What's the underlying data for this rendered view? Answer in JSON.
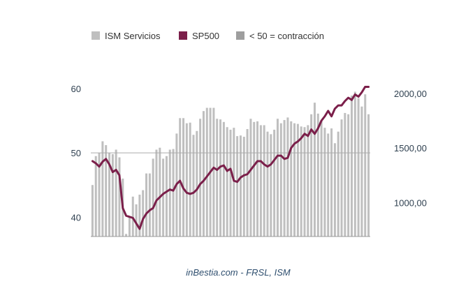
{
  "chart_data": {
    "type": "bar",
    "title": "",
    "xlabel": "",
    "ylabel": "",
    "source": "inBestia.com - FRSL, ISM",
    "legend": [
      {
        "label": "ISM Servicios",
        "color": "#bfbfbf",
        "kind": "bar"
      },
      {
        "label": "SP500",
        "color": "#7b1f4a",
        "kind": "line"
      },
      {
        "label": "< 50 = contracción",
        "color": "#9e9e9e",
        "kind": "bar"
      }
    ],
    "legend_position": "top",
    "grid": false,
    "reference_line": {
      "value": 50,
      "color": "#aaaaaa"
    },
    "y_left": {
      "min": 37,
      "max": 64,
      "ticks": [
        {
          "value": 40,
          "label": "40"
        },
        {
          "value": 50,
          "label": "50"
        },
        {
          "value": 60,
          "label": "60"
        }
      ]
    },
    "y_right": {
      "min": 690,
      "max": 2280,
      "ticks": [
        {
          "value": 1000,
          "label": "1000,00"
        },
        {
          "value": 1500,
          "label": "1500,00"
        },
        {
          "value": 2000,
          "label": "2000,00"
        }
      ]
    },
    "series": [
      {
        "name": "ISM Servicios",
        "axis": "left",
        "color": "#bfbfbf",
        "values": [
          45,
          49.5,
          50,
          51.8,
          51.2,
          50,
          49.8,
          50.5,
          49.3,
          46,
          37.4,
          40,
          43.2,
          42,
          43.5,
          44.2,
          46.8,
          46.8,
          49.1,
          50.5,
          50.8,
          49.1,
          49.5,
          50.5,
          50.6,
          53,
          55.4,
          55.4,
          54.6,
          54.7,
          52.8,
          53.4,
          55.3,
          56.5,
          57,
          57,
          57,
          55.3,
          55.2,
          54.8,
          54,
          53.6,
          53.9,
          52.6,
          52.7,
          52.5,
          53.7,
          55.3,
          54.8,
          54.9,
          54.3,
          54.3,
          53.3,
          52.9,
          53.6,
          55.3,
          54.6,
          55.1,
          55.5,
          54.9,
          54.6,
          54.5,
          54.1,
          54,
          54.3,
          56,
          57.8,
          56.1,
          55,
          53.9,
          53,
          53.8,
          51.5,
          53.3,
          55.2,
          56.2,
          56,
          58.9,
          59.5,
          58.5,
          57.2,
          59.1,
          56
        ]
      },
      {
        "name": "SP500",
        "axis": "right",
        "color": "#7b1f4a",
        "values": [
          1380,
          1360,
          1330,
          1375,
          1400,
          1350,
          1280,
          1300,
          1250,
          950,
          880,
          870,
          860,
          810,
          760,
          850,
          900,
          930,
          950,
          1020,
          1050,
          1080,
          1100,
          1120,
          1110,
          1170,
          1200,
          1130,
          1090,
          1080,
          1090,
          1120,
          1170,
          1200,
          1240,
          1280,
          1320,
          1300,
          1330,
          1340,
          1290,
          1310,
          1200,
          1190,
          1230,
          1250,
          1260,
          1300,
          1340,
          1380,
          1380,
          1350,
          1330,
          1350,
          1390,
          1430,
          1430,
          1400,
          1410,
          1500,
          1540,
          1560,
          1590,
          1630,
          1610,
          1670,
          1630,
          1680,
          1750,
          1790,
          1840,
          1790,
          1860,
          1890,
          1890,
          1930,
          1960,
          1940,
          1990,
          1970,
          2010,
          2060,
          2060
        ]
      }
    ]
  }
}
